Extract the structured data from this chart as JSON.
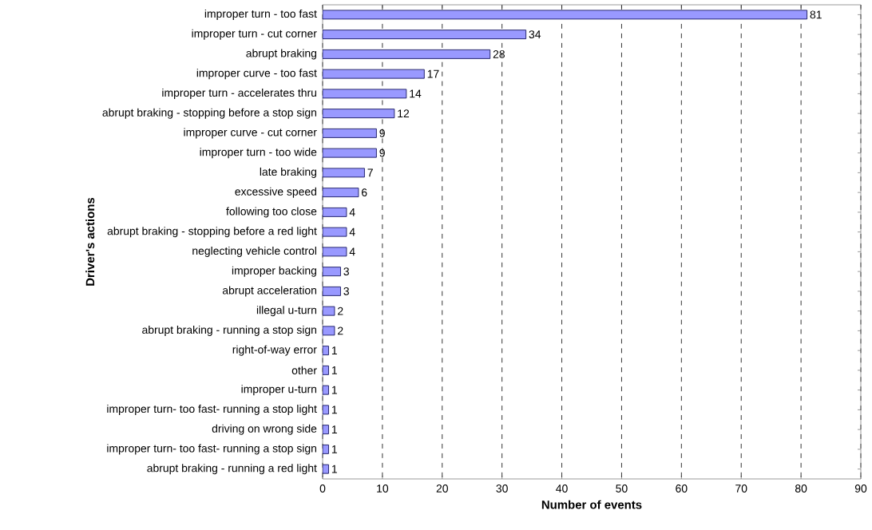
{
  "chart_data": {
    "type": "bar",
    "orientation": "horizontal",
    "xlabel": "Number of events",
    "ylabel": "Driver's actions",
    "categories": [
      "improper turn - too fast",
      "improper turn - cut corner",
      "abrupt braking",
      "improper curve - too fast",
      "improper turn - accelerates thru",
      "abrupt braking - stopping before a stop sign",
      "improper curve - cut corner",
      "improper turn - too wide",
      "late braking",
      "excessive speed",
      "following too close",
      "abrupt braking - stopping before a red light",
      "neglecting vehicle control",
      "improper backing",
      "abrupt acceleration",
      "illegal u-turn",
      "abrupt braking - running a stop sign",
      "right-of-way error",
      "other",
      "improper u-turn",
      "improper turn- too fast- running a stop light",
      "driving on wrong side",
      "improper turn- too fast- running a stop sign",
      "abrupt braking - running a red light"
    ],
    "values": [
      81,
      34,
      28,
      17,
      14,
      12,
      9,
      9,
      7,
      6,
      4,
      4,
      4,
      3,
      3,
      2,
      2,
      1,
      1,
      1,
      1,
      1,
      1,
      1
    ],
    "color": "#9999ff",
    "xlim": [
      0,
      90
    ],
    "xticks": [
      0,
      10,
      20,
      30,
      40,
      50,
      60,
      70,
      80,
      90
    ],
    "grid": "x",
    "line_style": "dashed",
    "data_labels": true
  }
}
